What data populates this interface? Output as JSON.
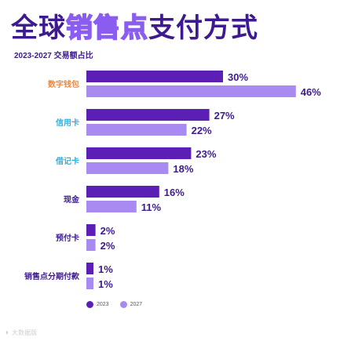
{
  "title": {
    "part1": "全球",
    "part2": "销售点",
    "part3": "支付方式"
  },
  "watermark": {
    "icon": "logo-icon",
    "text": "大数据版"
  },
  "colors": {
    "s2023": "#5b1fb5",
    "s2027": "#a98af0",
    "label_orange": "#f0883a",
    "label_cyan": "#2bb3e0",
    "label_dark": "#3d1a8f",
    "value_text": "#3d1a8f"
  },
  "chart_data": {
    "type": "bar",
    "orientation": "horizontal",
    "title": "全球销售点支付方式",
    "subtitle": "2023-2027 交易额占比",
    "categories": [
      "数字钱包",
      "信用卡",
      "借记卡",
      "现金",
      "预付卡",
      "销售点分期付款"
    ],
    "category_colors": [
      "#f0883a",
      "#2bb3e0",
      "#2bb3e0",
      "#3d1a8f",
      "#3d1a8f",
      "#3d1a8f"
    ],
    "series": [
      {
        "name": "2023",
        "values": [
          30,
          27,
          23,
          16,
          2,
          1
        ],
        "labels": [
          "30%",
          "27%",
          "23%",
          "16%",
          "2%",
          "1%"
        ]
      },
      {
        "name": "2027",
        "values": [
          46,
          22,
          18,
          11,
          2,
          1
        ],
        "labels": [
          "46%",
          "22%",
          "18%",
          "11%",
          "2%",
          "1%"
        ]
      }
    ],
    "unit": "%",
    "grid": false,
    "legend_position": "bottom-left"
  }
}
